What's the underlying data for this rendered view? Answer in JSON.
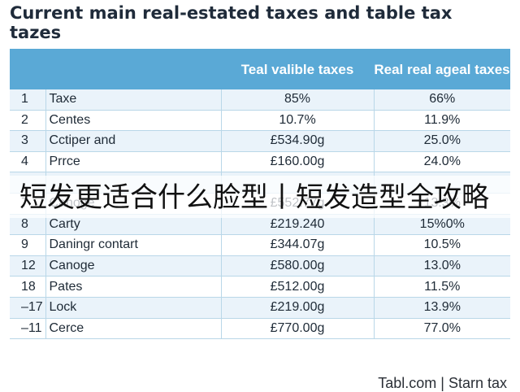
{
  "title": "Current main real-estated taxes and table tax tazes",
  "columns": [
    "",
    "",
    "Teal valible taxes",
    "Real real ageal taxes"
  ],
  "rows": [
    {
      "num": "1",
      "name": "Taxe",
      "v1": "85%",
      "v2": "66%"
    },
    {
      "num": "2",
      "name": "Centes",
      "v1": "10.7%",
      "v2": "11.9%"
    },
    {
      "num": "3",
      "name": "Cctiper and",
      "v1": "£534.90g",
      "v2": "25.0%"
    },
    {
      "num": "4",
      "name": "Prrce",
      "v1": "£160.00g",
      "v2": "24.0%"
    },
    {
      "num": "",
      "name": "",
      "v1": "",
      "v2": ""
    },
    {
      "num": "7",
      "name": "Canoge",
      "v1": "£552.77g",
      "v2": "13.3%"
    },
    {
      "num": "8",
      "name": "Carty",
      "v1": "£219.240",
      "v2": "15%0%"
    },
    {
      "num": "9",
      "name": "Daningr contart",
      "v1": "£344.07g",
      "v2": "10.5%"
    },
    {
      "num": "12",
      "name": "Canoge",
      "v1": "£580.00g",
      "v2": "13.0%"
    },
    {
      "num": "18",
      "name": "Pates",
      "v1": "£512.00g",
      "v2": "11.5%"
    },
    {
      "num": "–17",
      "name": "Lock",
      "v1": "£219.00g",
      "v2": "13.9%"
    },
    {
      "num": "–11",
      "name": "Cerce",
      "v1": "£770.00g",
      "v2": "77.0%"
    }
  ],
  "overlay_text": "短发更适合什么脸型丨短发造型全攻略",
  "footer": "Tabl.com | Starn tax",
  "colors": {
    "header": "#5aa9d6",
    "row_alt": "#eaf3fa",
    "title": "#1f2b3a"
  }
}
